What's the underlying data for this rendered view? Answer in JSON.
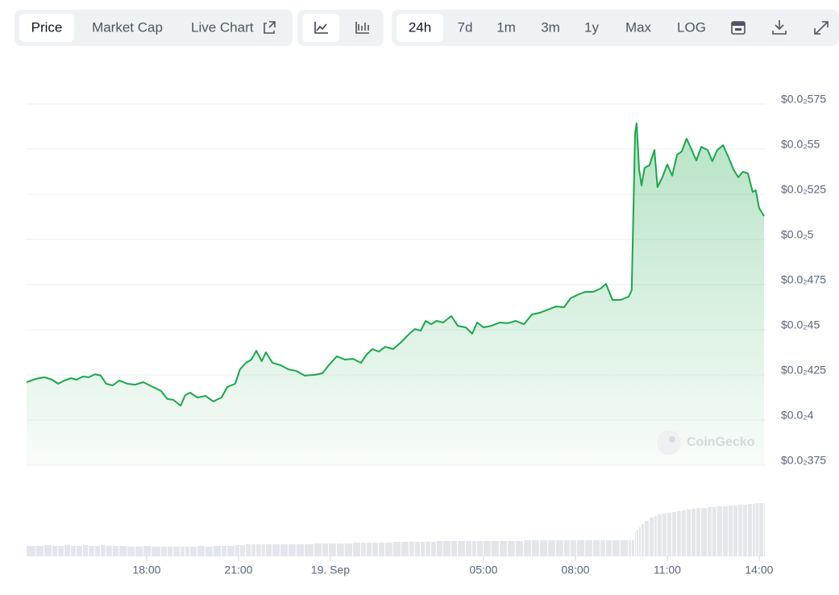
{
  "toolbar": {
    "tabs": [
      "Price",
      "Market Cap",
      "Live Chart"
    ],
    "active_tab": 0,
    "ranges": [
      "24h",
      "7d",
      "1m",
      "3m",
      "1y",
      "Max",
      "LOG"
    ],
    "active_range": 0
  },
  "watermark": "CoinGecko",
  "chart_data": {
    "type": "area",
    "color": "#19a84a",
    "grid": true,
    "x": [
      -9.92,
      -9.61,
      -9.34,
      -9.08,
      -8.89,
      -8.68,
      -8.47,
      -8.29,
      -8.08,
      -7.89,
      -7.68,
      -7.5,
      -7.32,
      -7.11,
      -6.89,
      -6.63,
      -6.37,
      -6.11,
      -5.84,
      -5.53,
      -5.32,
      -5.13,
      -4.89,
      -4.74,
      -4.58,
      -4.34,
      -4.08,
      -3.82,
      -3.55,
      -3.37,
      -3.11,
      -2.95,
      -2.76,
      -2.58,
      -2.42,
      -2.24,
      -2.11,
      -1.89,
      -1.63,
      -1.37,
      -1.11,
      -0.84,
      -0.53,
      -0.26,
      -0.05,
      0.21,
      0.47,
      0.74,
      1.0,
      1.18,
      1.37,
      1.58,
      1.79,
      2.05,
      2.32,
      2.58,
      2.76,
      2.95,
      3.11,
      3.29,
      3.47,
      3.68,
      3.95,
      4.16,
      4.42,
      4.63,
      4.79,
      5.0,
      5.26,
      5.53,
      5.79,
      6.05,
      6.32,
      6.58,
      6.84,
      7.11,
      7.37,
      7.63,
      7.84,
      8.05,
      8.32,
      8.58,
      8.82,
      9.0,
      9.21,
      9.47,
      9.74,
      9.84,
      9.95,
      10.0,
      10.08,
      10.16,
      10.26,
      10.42,
      10.58,
      10.68,
      10.84,
      11.0,
      11.16,
      11.32,
      11.47,
      11.63,
      11.79,
      11.95,
      12.11,
      12.32,
      12.47,
      12.63,
      12.82,
      13.0,
      13.16,
      13.32,
      13.47,
      13.63,
      13.79,
      13.89,
      14.0,
      14.16
    ],
    "values": [
      0.00421,
      0.004228,
      0.004237,
      0.004223,
      0.004201,
      0.004219,
      0.004232,
      0.004223,
      0.004241,
      0.004237,
      0.004254,
      0.004246,
      0.004201,
      0.004192,
      0.004219,
      0.004201,
      0.004196,
      0.00421,
      0.004187,
      0.004161,
      0.004116,
      0.004112,
      0.00408,
      0.004138,
      0.004152,
      0.004125,
      0.004134,
      0.004103,
      0.004125,
      0.004183,
      0.004201,
      0.004281,
      0.004317,
      0.004335,
      0.004384,
      0.004326,
      0.004375,
      0.004317,
      0.004304,
      0.004281,
      0.004272,
      0.004246,
      0.00425,
      0.004259,
      0.004304,
      0.004353,
      0.004335,
      0.004339,
      0.004317,
      0.004362,
      0.004393,
      0.004379,
      0.004406,
      0.004393,
      0.004433,
      0.004478,
      0.004504,
      0.004495,
      0.004549,
      0.004531,
      0.004549,
      0.00454,
      0.004576,
      0.004522,
      0.004513,
      0.004478,
      0.00454,
      0.004513,
      0.004522,
      0.00454,
      0.004536,
      0.004549,
      0.004531,
      0.004585,
      0.004594,
      0.004612,
      0.004629,
      0.004625,
      0.004674,
      0.004692,
      0.00471,
      0.00471,
      0.004728,
      0.004754,
      0.004665,
      0.004665,
      0.004683,
      0.004719,
      0.005589,
      0.005643,
      0.005388,
      0.005299,
      0.005397,
      0.005411,
      0.005495,
      0.00529,
      0.005344,
      0.005415,
      0.005353,
      0.005469,
      0.005487,
      0.005558,
      0.0055,
      0.005437,
      0.005513,
      0.005495,
      0.005433,
      0.005495,
      0.005522,
      0.005455,
      0.005388,
      0.005344,
      0.005375,
      0.005366,
      0.005263,
      0.005272,
      0.005174,
      0.005129
    ],
    "volume": [
      13,
      13,
      14,
      13,
      13,
      14,
      13,
      13,
      14,
      13,
      13,
      14,
      13,
      13,
      13,
      12,
      12,
      13,
      12,
      12,
      12,
      12,
      12,
      12,
      12,
      13,
      12,
      13,
      13,
      13,
      14,
      14,
      15,
      15,
      15,
      15,
      15,
      15,
      15,
      15,
      15,
      15,
      16,
      16,
      16,
      16,
      16,
      17,
      17,
      17,
      17,
      17,
      17,
      18,
      18,
      18,
      18,
      18,
      18,
      18,
      19,
      19,
      19,
      19,
      19,
      19,
      19,
      19,
      19,
      19,
      19,
      19,
      20,
      20,
      20,
      20,
      20,
      20,
      20,
      20,
      20,
      20,
      20,
      20,
      20,
      20,
      20,
      20,
      30,
      33,
      36,
      40,
      44,
      48,
      50,
      52,
      53,
      54,
      55,
      56,
      57,
      58,
      59,
      60,
      60,
      61,
      61,
      62,
      62,
      63,
      63,
      64,
      64,
      65,
      65,
      66,
      66,
      67
    ],
    "volume_color": "#e3e6ea",
    "xlim": [
      -9.92,
      14.16
    ],
    "xticks": [
      {
        "value": -6,
        "label": "18:00"
      },
      {
        "value": -3,
        "label": "21:00"
      },
      {
        "value": 0,
        "label": "19. Sep"
      },
      {
        "value": 5,
        "label": "05:00"
      },
      {
        "value": 8,
        "label": "08:00"
      },
      {
        "value": 11,
        "label": "11:00"
      },
      {
        "value": 14,
        "label": "14:00"
      }
    ],
    "ylim": [
      0.00375,
      0.00575
    ],
    "yticks": [
      {
        "value": 0.00375,
        "label": "$0.0₂375"
      },
      {
        "value": 0.004,
        "label": "$0.0₂4"
      },
      {
        "value": 0.00425,
        "label": "$0.0₂425"
      },
      {
        "value": 0.0045,
        "label": "$0.0₂45"
      },
      {
        "value": 0.00475,
        "label": "$0.0₂475"
      },
      {
        "value": 0.005,
        "label": "$0.0₂5"
      },
      {
        "value": 0.00525,
        "label": "$0.0₂525"
      },
      {
        "value": 0.0055,
        "label": "$0.0₂55"
      },
      {
        "value": 0.00575,
        "label": "$0.0₂575"
      }
    ]
  }
}
